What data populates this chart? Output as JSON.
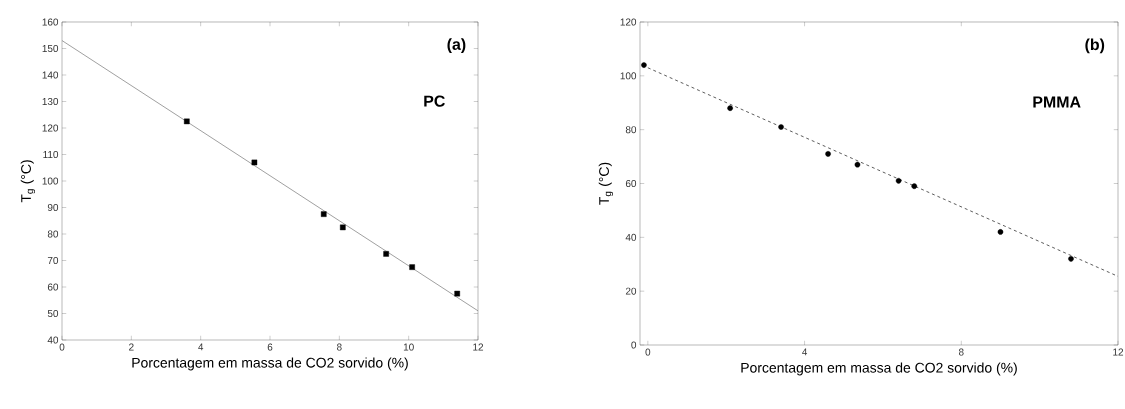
{
  "chart_data": [
    {
      "type": "scatter",
      "xlabel": "Porcentagem em massa de CO2 sorvido (%)",
      "ylabel": "T$_{g}$ (°C)",
      "annotations": [
        "(a)",
        "PC"
      ],
      "xlim": [
        0,
        12
      ],
      "ylim": [
        40,
        160
      ],
      "xticks": [
        0,
        2,
        4,
        6,
        8,
        10,
        12
      ],
      "yticks": [
        40,
        50,
        60,
        70,
        80,
        90,
        100,
        110,
        120,
        130,
        140,
        150,
        160
      ],
      "grid": false,
      "series": [
        {
          "marker": "square",
          "color": "#000000",
          "x": [
            3.6,
            5.55,
            7.55,
            8.1,
            9.35,
            10.1,
            11.4
          ],
          "values": [
            122.5,
            107,
            87.5,
            82.5,
            72.5,
            67.5,
            57.5
          ]
        },
        {
          "type": "line",
          "line_style": "solid",
          "color": "#888888",
          "x": [
            0,
            12
          ],
          "values": [
            153,
            51
          ]
        }
      ]
    },
    {
      "type": "scatter",
      "xlabel": "Porcentagem em massa de CO2 sorvido (%)",
      "ylabel": "T$_{g}$ (°C)",
      "annotations": [
        "(b)",
        "PMMA"
      ],
      "xlim": [
        -0.2,
        12
      ],
      "ylim": [
        0,
        120
      ],
      "xticks": [
        0,
        4,
        8,
        12
      ],
      "yticks": [
        0,
        20,
        40,
        60,
        80,
        100,
        120
      ],
      "grid": false,
      "series": [
        {
          "marker": "circle",
          "color": "#000000",
          "x": [
            -0.1,
            2.1,
            3.4,
            4.6,
            5.35,
            6.4,
            6.8,
            9.0,
            10.8
          ],
          "values": [
            104,
            88,
            81,
            71,
            67,
            61,
            59,
            42,
            32
          ]
        },
        {
          "type": "line",
          "line_style": "dashed",
          "color": "#333333",
          "x": [
            0,
            12
          ],
          "values": [
            103,
            25.5
          ]
        }
      ]
    }
  ]
}
